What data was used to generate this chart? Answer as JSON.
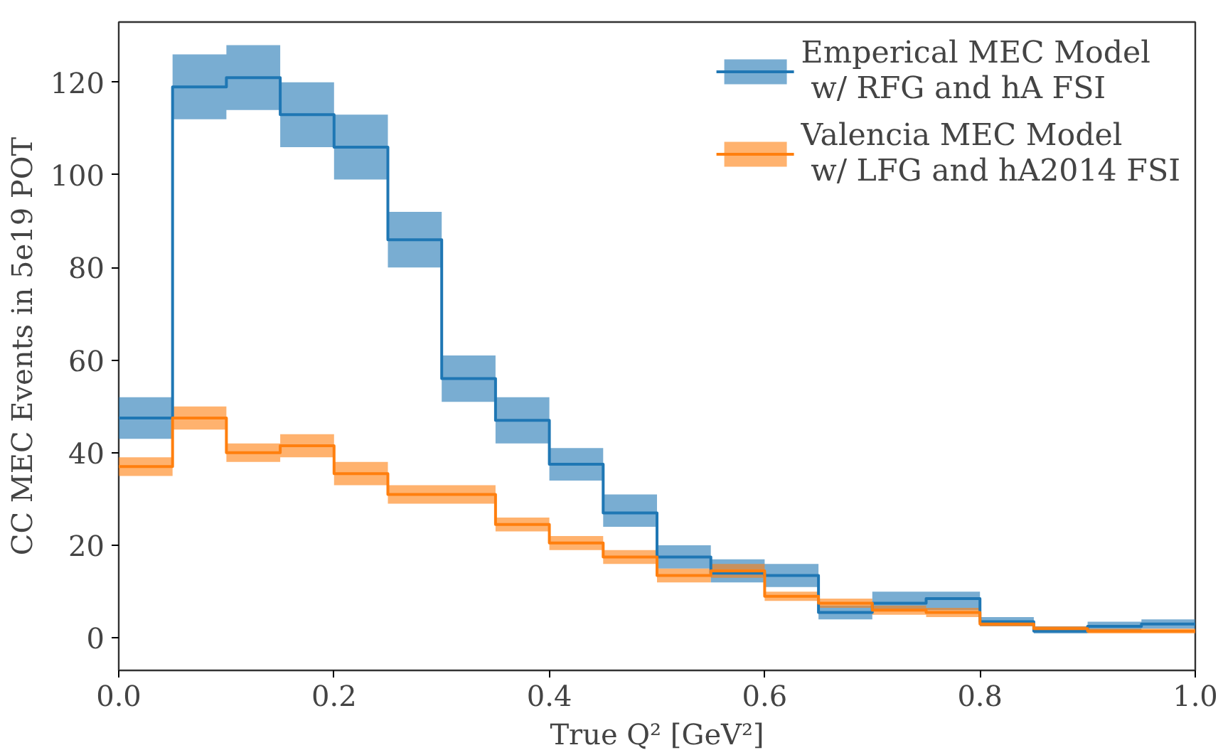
{
  "chart_data": {
    "type": "step",
    "xlabel": "True Q² [GeV²]",
    "ylabel": "CC MEC Events in 5e19 POT",
    "x": [
      0.0,
      0.05,
      0.1,
      0.15,
      0.2,
      0.25,
      0.3,
      0.35,
      0.4,
      0.45,
      0.5,
      0.55,
      0.6,
      0.65,
      0.7,
      0.75,
      0.8,
      0.85,
      0.9,
      0.95,
      1.0
    ],
    "series": [
      {
        "name": "Emperical MEC Model\n w/ RFG and hA FSI",
        "color": "#1f77b4",
        "values": [
          47.5,
          119,
          121,
          113,
          106,
          86,
          56,
          47,
          37.5,
          27,
          17.5,
          14,
          13.5,
          5.5,
          7.5,
          8.5,
          3.5,
          1.5,
          2.5,
          3,
          3
        ],
        "lower": [
          43,
          112,
          114,
          106,
          99,
          80,
          51,
          42,
          34,
          24,
          15,
          12,
          11,
          4,
          6,
          6,
          2.5,
          1,
          1.5,
          2,
          2
        ],
        "upper": [
          52,
          126,
          128,
          120,
          113,
          92,
          61,
          52,
          41,
          31,
          20,
          17,
          16,
          7,
          10,
          10,
          4.5,
          2.5,
          3.5,
          4,
          4
        ]
      },
      {
        "name": "Valencia MEC Model\n w/ LFG and hA2014 FSI",
        "color": "#ff7f0e",
        "values": [
          37,
          47.5,
          40,
          41.5,
          35.5,
          31,
          31,
          24.5,
          20.5,
          17.5,
          13.5,
          14.5,
          9,
          7.5,
          6,
          5.5,
          3,
          2,
          1.5,
          1.5,
          1.5
        ],
        "lower": [
          35,
          45,
          38,
          39,
          33,
          29,
          29,
          23,
          19,
          16,
          12,
          13,
          8,
          6.5,
          5,
          4.5,
          2.5,
          1.5,
          1,
          1,
          1
        ],
        "upper": [
          39,
          50,
          42,
          44,
          38,
          33,
          33,
          26,
          22,
          19,
          15,
          16,
          10,
          8.5,
          7,
          6.5,
          3.5,
          2.5,
          2,
          2,
          2
        ]
      }
    ],
    "xlim": [
      0.0,
      1.0
    ],
    "ylim": [
      -7,
      133
    ],
    "xticks": [
      {
        "value": 0,
        "label": "0.0"
      },
      0.2,
      0.4,
      0.6,
      0.8,
      {
        "value": 1,
        "label": "1.0"
      }
    ],
    "yticks": [
      0,
      20,
      40,
      60,
      80,
      100,
      120
    ],
    "legend": "top right"
  }
}
